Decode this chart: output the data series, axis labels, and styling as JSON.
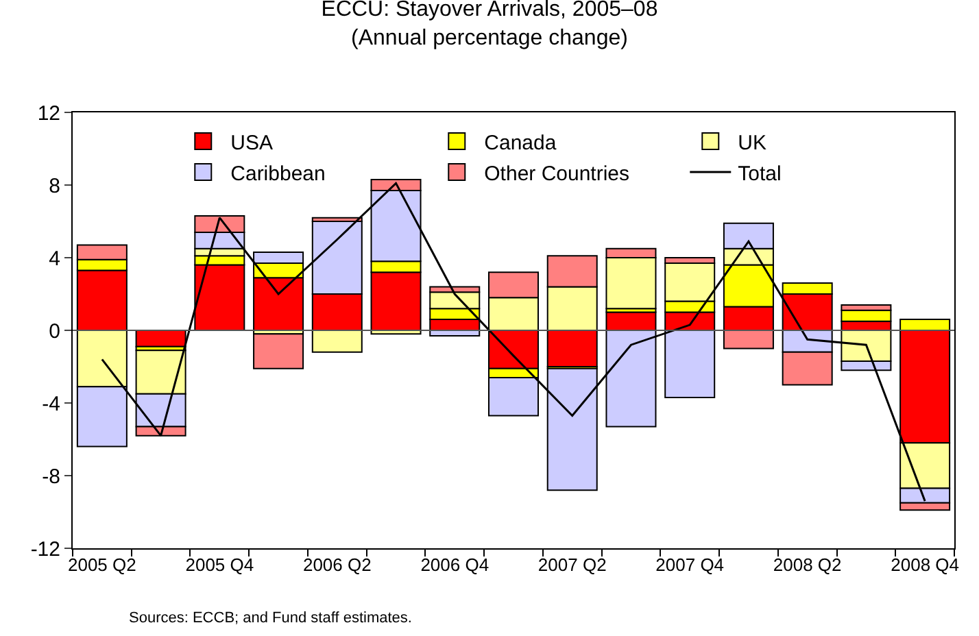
{
  "chart_data": {
    "type": "bar",
    "title": "ECCU: Stayover Arrivals, 2005–08",
    "subtitle": "(Annual percentage change)",
    "annotations": [
      "Sources: ECCB; and Fund staff estimates."
    ],
    "categories": [
      "2005 Q2",
      null,
      "2005 Q4",
      null,
      "2006 Q2",
      null,
      "2006 Q4",
      null,
      "2007 Q2",
      null,
      "2007 Q4",
      null,
      "2008 Q2",
      null,
      "2008 Q4"
    ],
    "stacked": true,
    "legend": "top right",
    "grid": false,
    "ref_lines": [
      {
        "axis": "y",
        "value": 0,
        "color": "#555555"
      }
    ],
    "ylim": [
      -12,
      12
    ],
    "yticks": [
      -12,
      -8,
      -4,
      0,
      4,
      8,
      12
    ],
    "series": [
      {
        "name": "USA",
        "color": "#ff0000",
        "values": [
          3.3,
          -0.9,
          3.6,
          2.9,
          2.0,
          3.2,
          0.6,
          -2.1,
          -2.0,
          1.0,
          1.0,
          1.3,
          2.0,
          0.5,
          -6.2
        ]
      },
      {
        "name": "Canada",
        "color": "#ffff00",
        "values": [
          0.6,
          -0.2,
          0.5,
          0.8,
          null,
          0.6,
          0.6,
          -0.5,
          -0.1,
          0.2,
          0.6,
          2.3,
          0.6,
          0.6,
          0.6
        ]
      },
      {
        "name": "UK",
        "color": "#ffff99",
        "values": [
          -3.1,
          -2.4,
          0.4,
          -0.2,
          -1.2,
          -0.2,
          0.9,
          1.8,
          2.4,
          2.8,
          2.1,
          0.9,
          null,
          -1.7,
          -2.5
        ]
      },
      {
        "name": "Caribbean",
        "color": "#ccccff",
        "values": [
          -3.3,
          -1.8,
          0.9,
          0.6,
          4.0,
          3.9,
          -0.3,
          -2.1,
          -6.7,
          -5.3,
          -3.7,
          1.4,
          -1.2,
          -0.5,
          -0.8
        ]
      },
      {
        "name": "Other Countries",
        "color": "#ff8080",
        "values": [
          0.8,
          -0.5,
          0.9,
          -1.9,
          0.2,
          0.6,
          0.3,
          1.4,
          1.7,
          0.5,
          0.3,
          -1.0,
          -1.8,
          0.3,
          -0.4
        ]
      },
      {
        "name": "Total",
        "type": "line",
        "color": "#000000",
        "values": [
          -1.6,
          -5.8,
          6.2,
          2.0,
          5.0,
          8.1,
          2.0,
          -1.4,
          -4.7,
          -0.8,
          0.3,
          4.9,
          -0.5,
          -0.8,
          -9.4
        ]
      }
    ]
  }
}
